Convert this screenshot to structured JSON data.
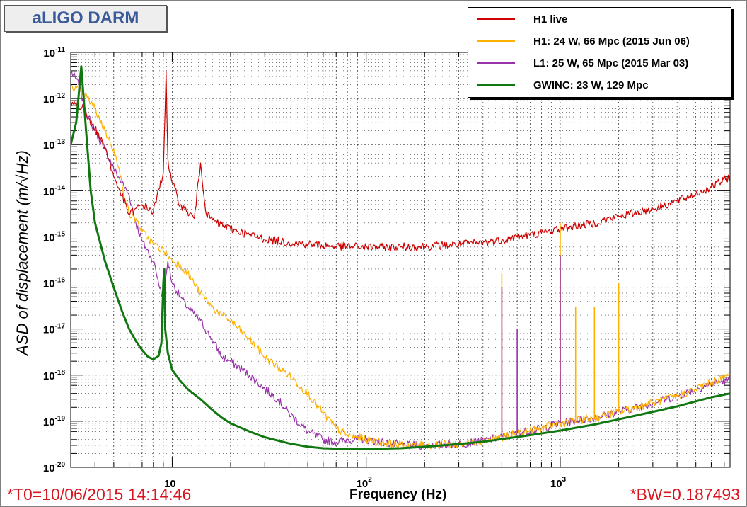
{
  "title": "aLIGO DARM",
  "footer": {
    "left": "*T0=10/06/2015 14:14:46",
    "right": "*BW=0.187493"
  },
  "chart_data": {
    "type": "line",
    "xscale": "log",
    "yscale": "log",
    "xlabel": "Frequency (Hz)",
    "ylabel": "ASD of displacement (m/√Hz)",
    "xlim": [
      3,
      7500
    ],
    "ylim": [
      1e-20,
      1e-11
    ],
    "grid": true,
    "legend_position": "top-right",
    "x_ticks": [
      {
        "base": "10",
        "exp": ""
      },
      {
        "base": "10",
        "exp": "2"
      },
      {
        "base": "10",
        "exp": "3"
      }
    ],
    "y_ticks": [
      {
        "base": "10",
        "exp": "-11"
      },
      {
        "base": "10",
        "exp": "-12"
      },
      {
        "base": "10",
        "exp": "-13"
      },
      {
        "base": "10",
        "exp": "-14"
      },
      {
        "base": "10",
        "exp": "-15"
      },
      {
        "base": "10",
        "exp": "-16"
      },
      {
        "base": "10",
        "exp": "-17"
      },
      {
        "base": "10",
        "exp": "-18"
      },
      {
        "base": "10",
        "exp": "-19"
      },
      {
        "base": "10",
        "exp": "-20"
      }
    ],
    "series": [
      {
        "name": "H1 live",
        "color": "#cc0000",
        "width": 1.2,
        "x": [
          3,
          3.5,
          4,
          4.5,
          5,
          5.5,
          6,
          7,
          8,
          9,
          9.3,
          9.5,
          9.7,
          10,
          11,
          12,
          13,
          14,
          15,
          17,
          20,
          25,
          30,
          40,
          50,
          60,
          80,
          100,
          150,
          200,
          300,
          400,
          500,
          600,
          800,
          1000,
          1500,
          2000,
          3000,
          4000,
          5000,
          6000,
          7500
        ],
        "y": [
          9e-13,
          6e-13,
          2.2e-13,
          9e-14,
          2e-14,
          8e-15,
          3e-15,
          5e-15,
          3.5e-15,
          2.5e-14,
          4e-12,
          5e-14,
          2.5e-14,
          1.5e-14,
          5e-15,
          3.5e-15,
          2.5e-15,
          4e-14,
          3e-15,
          2e-15,
          1.5e-15,
          1.1e-15,
          9e-16,
          7.5e-16,
          7e-16,
          6.5e-16,
          6.2e-16,
          6e-16,
          6e-16,
          6.2e-16,
          6.8e-16,
          7.5e-16,
          8.5e-16,
          1e-15,
          1.2e-15,
          1.5e-15,
          2e-15,
          2.8e-15,
          4e-15,
          6e-15,
          8.5e-15,
          1.2e-14,
          2e-14
        ]
      },
      {
        "name": "H1: 24 W, 66 Mpc (2015 Jun 06)",
        "color": "#ffb000",
        "width": 1.2,
        "x": [
          3,
          3.5,
          4,
          4.5,
          5,
          5.5,
          6,
          6.5,
          7,
          8,
          9,
          9.5,
          10,
          11,
          12,
          14,
          16,
          18,
          20,
          25,
          30,
          35,
          40,
          50,
          60,
          70,
          80,
          100,
          120,
          150,
          200,
          300,
          400,
          500,
          600,
          800,
          1000,
          1500,
          2000,
          3000,
          4000,
          5000,
          6000,
          7500
        ],
        "y": [
          2e-12,
          1.3e-12,
          6e-13,
          2e-13,
          8e-14,
          1.5e-14,
          3e-15,
          2.5e-15,
          1.3e-15,
          7e-16,
          5e-16,
          4e-16,
          3e-16,
          2.5e-16,
          1.6e-16,
          6e-17,
          3e-17,
          2e-17,
          1.5e-17,
          6e-18,
          2.5e-18,
          1.5e-18,
          1e-18,
          4e-19,
          1.5e-19,
          7e-20,
          5e-20,
          4e-20,
          3.5e-20,
          3e-20,
          3e-20,
          3.2e-20,
          3.8e-20,
          4.5e-20,
          5.5e-20,
          7e-20,
          9e-20,
          1.2e-19,
          1.6e-19,
          2.5e-19,
          3.5e-19,
          5e-19,
          7e-19,
          1e-18
        ]
      },
      {
        "name": "L1: 25 W, 65 Mpc (2015 Mar 03)",
        "color": "#9933aa",
        "width": 1.2,
        "x": [
          3,
          3.3,
          3.6,
          4,
          4.5,
          5,
          5.5,
          6,
          6.5,
          7,
          8,
          9,
          9.5,
          10,
          11,
          12,
          14,
          16,
          18,
          20,
          25,
          30,
          35,
          40,
          50,
          60,
          70,
          80,
          100,
          150,
          200,
          300,
          400,
          500,
          600,
          800,
          1000,
          1500,
          2000,
          3000,
          4000,
          5000,
          6000,
          7500
        ],
        "y": [
          4e-12,
          2e-12,
          5e-13,
          2e-13,
          8e-14,
          3e-14,
          1.5e-14,
          8e-15,
          2e-15,
          8e-16,
          3e-16,
          4e-17,
          3e-16,
          1e-16,
          5e-17,
          3e-17,
          1.5e-17,
          6e-18,
          2.5e-18,
          2e-18,
          1e-18,
          5e-19,
          3e-19,
          1.5e-19,
          6e-20,
          4e-20,
          3.5e-20,
          4e-20,
          4e-20,
          3e-20,
          3e-20,
          3.2e-20,
          3.8e-20,
          4.5e-20,
          5.5e-20,
          7e-20,
          9e-20,
          1.2e-19,
          1.6e-19,
          2.5e-19,
          3.5e-19,
          5e-19,
          6.5e-19,
          8e-19
        ]
      },
      {
        "name": "GWINC: 23 W, 129 Mpc",
        "color": "#117711",
        "width": 3,
        "x": [
          3,
          3.2,
          3.4,
          3.6,
          3.8,
          4,
          4.5,
          5,
          5.5,
          6,
          6.5,
          7,
          7.5,
          8,
          8.5,
          8.8,
          9,
          9.1,
          9.2,
          9.5,
          10,
          11,
          12,
          14,
          16,
          18,
          20,
          25,
          30,
          40,
          50,
          60,
          80,
          100,
          150,
          200,
          300,
          400,
          500,
          700,
          1000,
          1500,
          2000,
          3000,
          4000,
          5000,
          6000,
          7500
        ],
        "y": [
          1e-13,
          3e-13,
          5e-12,
          2e-13,
          1e-14,
          2e-15,
          3e-16,
          8e-17,
          2.5e-17,
          1e-17,
          5.5e-18,
          3.5e-18,
          2.5e-18,
          2.2e-18,
          2.6e-18,
          5e-18,
          1e-16,
          2e-16,
          1e-17,
          3e-18,
          1.3e-18,
          7.5e-19,
          5e-19,
          3e-19,
          1.8e-19,
          1.2e-19,
          9e-20,
          6e-20,
          4.5e-20,
          3.3e-20,
          2.8e-20,
          2.6e-20,
          2.5e-20,
          2.5e-20,
          2.6e-20,
          2.8e-20,
          3.2e-20,
          3.6e-20,
          4.1e-20,
          5e-20,
          6.3e-20,
          8.5e-20,
          1.1e-19,
          1.6e-19,
          2.1e-19,
          2.7e-19,
          3.3e-19,
          4e-19
        ]
      }
    ],
    "annotations": [
      {
        "series": "H1: 24 W, 66 Mpc (2015 Jun 06)",
        "x": 500,
        "y": 1.6e-16
      },
      {
        "series": "H1: 24 W, 66 Mpc (2015 Jun 06)",
        "x": 1000,
        "y": 2e-16
      },
      {
        "series": "H1: 24 W, 66 Mpc (2015 Jun 06)",
        "x": 1000,
        "y": 2e-15
      },
      {
        "series": "H1: 24 W, 66 Mpc (2015 Jun 06)",
        "x": 1200,
        "y": 3e-17
      },
      {
        "series": "H1: 24 W, 66 Mpc (2015 Jun 06)",
        "x": 1500,
        "y": 3e-17
      },
      {
        "series": "H1: 24 W, 66 Mpc (2015 Jun 06)",
        "x": 2000,
        "y": 1e-16
      },
      {
        "series": "L1: 25 W, 65 Mpc (2015 Mar 03)",
        "x": 500,
        "y": 8e-17
      },
      {
        "series": "L1: 25 W, 65 Mpc (2015 Mar 03)",
        "x": 1000,
        "y": 4e-16
      },
      {
        "series": "L1: 25 W, 65 Mpc (2015 Mar 03)",
        "x": 600,
        "y": 1e-17
      }
    ]
  }
}
